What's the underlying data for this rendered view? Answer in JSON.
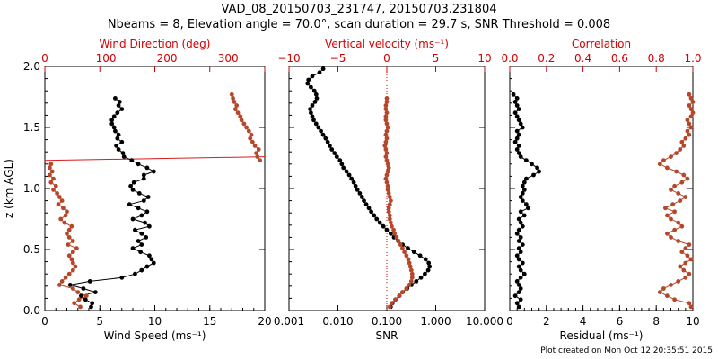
{
  "header": {
    "line1": "VAD_08_20150703_231747, 20150703.231804",
    "line2": "Nbeams = 8, Elevation angle = 70.0°, scan duration = 29.7 s, SNR Threshold = 0.008"
  },
  "footer": {
    "credit": "Plot created on Mon Oct 12 20:35:51 2015"
  },
  "colors": {
    "black_series": "#000000",
    "red_series": "#b5472a",
    "red_axis": "#d40000",
    "frame": "#000000"
  },
  "chart_data": [
    {
      "type": "line",
      "panel": "left",
      "xlabel": "Wind Speed (ms⁻¹)",
      "ylabel": "z (km AGL)",
      "x_ticks": [
        "0",
        "5",
        "10",
        "15",
        "20"
      ],
      "xlim": [
        0,
        20
      ],
      "top_xlabel": "Wind Direction (deg)",
      "top_ticks": [
        "0",
        "100",
        "200",
        "300"
      ],
      "top_xlim": [
        0,
        360
      ],
      "y_ticks": [
        "0.0",
        "0.5",
        "1.0",
        "1.5",
        "2.0"
      ],
      "ylim": [
        0,
        2
      ],
      "reference_line": {
        "x1": 0,
        "y1": 1.23,
        "x2": 360,
        "y2": 1.26,
        "axis": "top"
      },
      "series": [
        {
          "axis": "bottom",
          "color": "#000000",
          "z": [
            0.03,
            0.06,
            0.09,
            0.12,
            0.15,
            0.18,
            0.21,
            0.24,
            0.27,
            0.3,
            0.33,
            0.36,
            0.39,
            0.42,
            0.45,
            0.48,
            0.51,
            0.54,
            0.57,
            0.6,
            0.63,
            0.66,
            0.69,
            0.72,
            0.75,
            0.78,
            0.81,
            0.84,
            0.87,
            0.9,
            0.93,
            0.96,
            0.99,
            1.02,
            1.05,
            1.08,
            1.11,
            1.14,
            1.17,
            1.2,
            1.23,
            1.26,
            1.29,
            1.32,
            1.35,
            1.38,
            1.41,
            1.44,
            1.47,
            1.5,
            1.53,
            1.56,
            1.59,
            1.62,
            1.65,
            1.68,
            1.71,
            1.74
          ],
          "values": [
            4.2,
            4.3,
            3.7,
            3.3,
            4.6,
            3.5,
            2.3,
            4.1,
            7.0,
            8.2,
            8.8,
            9.3,
            9.9,
            9.7,
            9.5,
            8.7,
            8.0,
            8.8,
            8.5,
            9.2,
            8.8,
            8.2,
            9.5,
            9.1,
            8.0,
            8.8,
            9.3,
            8.5,
            7.7,
            9.0,
            9.4,
            8.6,
            8.0,
            7.8,
            8.1,
            9.0,
            9.0,
            9.9,
            9.3,
            8.5,
            7.9,
            7.2,
            7.1,
            6.7,
            6.5,
            7.0,
            6.6,
            6.7,
            6.4,
            6.3,
            6.1,
            6.1,
            6.3,
            6.6,
            7.0,
            6.7,
            6.8,
            6.4
          ]
        },
        {
          "axis": "top",
          "color": "#b5472a",
          "z": [
            0.03,
            0.06,
            0.09,
            0.12,
            0.15,
            0.18,
            0.21,
            0.24,
            0.27,
            0.3,
            0.33,
            0.36,
            0.39,
            0.42,
            0.45,
            0.48,
            0.51,
            0.54,
            0.57,
            0.6,
            0.63,
            0.66,
            0.69,
            0.72,
            0.75,
            0.78,
            0.81,
            0.84,
            0.87,
            0.9,
            0.93,
            0.96,
            0.99,
            1.02,
            1.05,
            1.08,
            1.11,
            1.14,
            1.17,
            1.2,
            1.23,
            1.26,
            1.29,
            1.32,
            1.35,
            1.38,
            1.41,
            1.44,
            1.47,
            1.5,
            1.53,
            1.56,
            1.59,
            1.62,
            1.65,
            1.68,
            1.71,
            1.74,
            1.77
          ],
          "values": [
            58,
            48,
            56,
            68,
            54,
            46,
            24,
            28,
            34,
            40,
            46,
            50,
            46,
            44,
            40,
            46,
            52,
            38,
            46,
            40,
            36,
            40,
            44,
            32,
            26,
            34,
            36,
            30,
            22,
            28,
            24,
            20,
            14,
            18,
            10,
            14,
            8,
            12,
            8,
            10,
            352,
            348,
            346,
            350,
            344,
            340,
            336,
            338,
            334,
            330,
            326,
            322,
            320,
            316,
            312,
            314,
            310,
            308,
            306
          ]
        }
      ]
    },
    {
      "type": "line",
      "panel": "middle",
      "xlabel": "SNR",
      "x_scale": "log",
      "x_ticks": [
        "0.001",
        "0.010",
        "0.100",
        "1.000",
        "10.000"
      ],
      "xlim": [
        0.001,
        10
      ],
      "top_xlabel": "Vertical velocity (ms⁻¹)",
      "top_ticks": [
        "−10",
        "−5",
        "0",
        "5",
        "10"
      ],
      "top_xlim": [
        -10,
        10
      ],
      "reference_line": {
        "x": 0,
        "axis": "top",
        "style": "dotted"
      },
      "ylim": [
        0,
        2
      ],
      "series": [
        {
          "axis": "bottom",
          "color": "#000000",
          "z": [
            0.03,
            0.06,
            0.09,
            0.12,
            0.15,
            0.18,
            0.21,
            0.24,
            0.27,
            0.3,
            0.33,
            0.36,
            0.39,
            0.42,
            0.45,
            0.48,
            0.51,
            0.54,
            0.57,
            0.6,
            0.63,
            0.66,
            0.69,
            0.72,
            0.75,
            0.78,
            0.81,
            0.84,
            0.87,
            0.9,
            0.93,
            0.96,
            0.99,
            1.02,
            1.05,
            1.08,
            1.11,
            1.14,
            1.17,
            1.2,
            1.23,
            1.26,
            1.29,
            1.32,
            1.35,
            1.38,
            1.41,
            1.44,
            1.47,
            1.5,
            1.53,
            1.56,
            1.59,
            1.62,
            1.65,
            1.68,
            1.71,
            1.74,
            1.77,
            1.8,
            1.83,
            1.86,
            1.89,
            1.92,
            1.95,
            1.98
          ],
          "values": [
            0.12,
            0.13,
            0.15,
            0.18,
            0.21,
            0.26,
            0.32,
            0.4,
            0.5,
            0.6,
            0.7,
            0.75,
            0.72,
            0.62,
            0.48,
            0.36,
            0.27,
            0.21,
            0.17,
            0.14,
            0.12,
            0.1,
            0.085,
            0.072,
            0.062,
            0.055,
            0.048,
            0.043,
            0.038,
            0.034,
            0.031,
            0.028,
            0.025,
            0.023,
            0.021,
            0.019,
            0.017,
            0.015,
            0.013,
            0.012,
            0.011,
            0.0095,
            0.0085,
            0.0075,
            0.0068,
            0.0062,
            0.0056,
            0.005,
            0.0045,
            0.004,
            0.0036,
            0.0032,
            0.003,
            0.0028,
            0.0027,
            0.003,
            0.0034,
            0.0037,
            0.0036,
            0.0033,
            0.0028,
            0.0024,
            0.0025,
            0.003,
            0.0042,
            0.005
          ]
        },
        {
          "axis": "top",
          "color": "#b5472a",
          "z": [
            0.03,
            0.06,
            0.09,
            0.12,
            0.15,
            0.18,
            0.21,
            0.24,
            0.27,
            0.3,
            0.33,
            0.36,
            0.39,
            0.42,
            0.45,
            0.48,
            0.51,
            0.54,
            0.57,
            0.6,
            0.63,
            0.66,
            0.69,
            0.72,
            0.75,
            0.78,
            0.81,
            0.84,
            0.87,
            0.9,
            0.93,
            0.96,
            0.99,
            1.02,
            1.05,
            1.08,
            1.11,
            1.14,
            1.17,
            1.2,
            1.23,
            1.26,
            1.29,
            1.32,
            1.35,
            1.38,
            1.41,
            1.44,
            1.47,
            1.5,
            1.53,
            1.56,
            1.59,
            1.62,
            1.65,
            1.68,
            1.71,
            1.74
          ],
          "values": [
            0.3,
            0.5,
            0.9,
            1.3,
            1.6,
            2.0,
            2.3,
            2.5,
            2.6,
            2.6,
            2.5,
            2.4,
            2.3,
            2.2,
            2.0,
            1.8,
            1.6,
            1.4,
            1.2,
            1.0,
            0.8,
            0.7,
            0.5,
            0.4,
            0.3,
            0.3,
            0.2,
            0.2,
            0.3,
            0.4,
            0.3,
            0.2,
            0.1,
            0.1,
            0.0,
            -0.1,
            0.0,
            0.1,
            0.2,
            0.1,
            0.0,
            -0.1,
            0.0,
            -0.1,
            -0.2,
            -0.1,
            0.0,
            -0.1,
            0.0,
            0.1,
            0.0,
            -0.1,
            -0.1,
            0.0,
            -0.1,
            -0.1,
            0.0,
            0.0
          ]
        }
      ]
    },
    {
      "type": "line",
      "panel": "right",
      "xlabel": "Residual (ms⁻¹)",
      "x_ticks": [
        "0",
        "2",
        "4",
        "6",
        "8",
        "10"
      ],
      "xlim": [
        0,
        10
      ],
      "top_xlabel": "Correlation",
      "top_ticks": [
        "0.0",
        "0.2",
        "0.4",
        "0.6",
        "0.8",
        "1.0"
      ],
      "top_xlim": [
        0,
        1
      ],
      "ylim": [
        0,
        2
      ],
      "series": [
        {
          "axis": "bottom",
          "color": "#000000",
          "z": [
            0.03,
            0.06,
            0.09,
            0.12,
            0.15,
            0.18,
            0.21,
            0.24,
            0.27,
            0.3,
            0.33,
            0.36,
            0.39,
            0.42,
            0.45,
            0.48,
            0.51,
            0.54,
            0.57,
            0.6,
            0.63,
            0.66,
            0.69,
            0.72,
            0.75,
            0.78,
            0.81,
            0.84,
            0.87,
            0.9,
            0.93,
            0.96,
            0.99,
            1.02,
            1.05,
            1.08,
            1.11,
            1.14,
            1.17,
            1.2,
            1.23,
            1.26,
            1.29,
            1.32,
            1.35,
            1.38,
            1.41,
            1.44,
            1.47,
            1.5,
            1.53,
            1.56,
            1.59,
            1.62,
            1.65,
            1.68,
            1.71,
            1.74,
            1.77
          ],
          "values": [
            0.5,
            0.4,
            0.6,
            0.3,
            0.5,
            0.6,
            0.5,
            0.4,
            0.6,
            0.8,
            0.6,
            0.5,
            0.7,
            0.5,
            0.4,
            0.6,
            0.5,
            0.7,
            0.5,
            0.6,
            0.4,
            0.5,
            0.7,
            0.6,
            0.5,
            0.8,
            0.6,
            1.0,
            0.9,
            0.7,
            0.6,
            0.7,
            0.8,
            0.7,
            0.8,
            0.9,
            1.3,
            1.6,
            1.5,
            1.2,
            0.9,
            0.6,
            0.5,
            0.4,
            0.5,
            0.3,
            0.4,
            0.5,
            0.4,
            0.7,
            0.6,
            0.5,
            0.4,
            0.3,
            0.5,
            0.4,
            0.3,
            0.4,
            0.2
          ]
        },
        {
          "axis": "top",
          "color": "#b5472a",
          "z": [
            0.03,
            0.06,
            0.09,
            0.12,
            0.15,
            0.18,
            0.21,
            0.24,
            0.27,
            0.3,
            0.33,
            0.36,
            0.39,
            0.42,
            0.45,
            0.48,
            0.51,
            0.54,
            0.57,
            0.6,
            0.63,
            0.66,
            0.69,
            0.72,
            0.75,
            0.78,
            0.81,
            0.84,
            0.87,
            0.9,
            0.93,
            0.96,
            0.99,
            1.02,
            1.05,
            1.08,
            1.11,
            1.14,
            1.17,
            1.2,
            1.23,
            1.26,
            1.29,
            1.32,
            1.35,
            1.38,
            1.41,
            1.44,
            1.47,
            1.5,
            1.53,
            1.56,
            1.59,
            1.62,
            1.65,
            1.68,
            1.71,
            1.74,
            1.77
          ],
          "values": [
            0.99,
            0.98,
            0.9,
            0.86,
            0.82,
            0.84,
            0.88,
            0.92,
            0.96,
            0.98,
            0.95,
            0.93,
            0.96,
            0.99,
            0.97,
            0.94,
            0.96,
            0.98,
            0.92,
            0.88,
            0.86,
            0.9,
            0.94,
            0.92,
            0.88,
            0.86,
            0.9,
            0.85,
            0.89,
            0.93,
            0.96,
            0.92,
            0.88,
            0.9,
            0.94,
            0.97,
            0.95,
            0.91,
            0.86,
            0.82,
            0.84,
            0.88,
            0.91,
            0.93,
            0.95,
            0.94,
            0.96,
            0.98,
            0.97,
            0.99,
            0.98,
            0.97,
            0.99,
            1.0,
            0.99,
            0.98,
            1.0,
            0.99,
            0.98
          ]
        }
      ]
    }
  ]
}
